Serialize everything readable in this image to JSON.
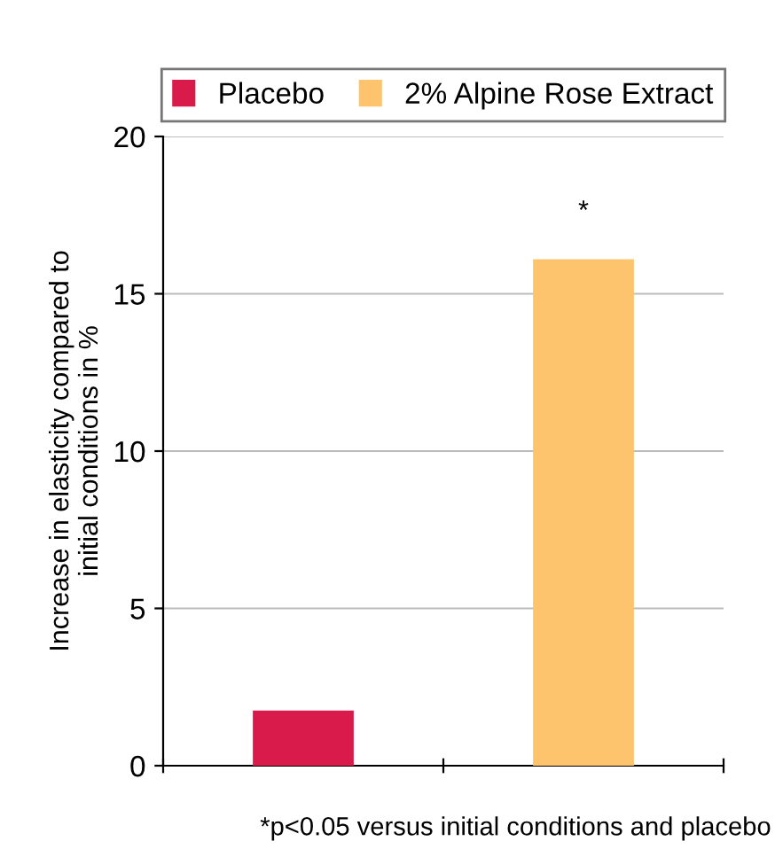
{
  "chart_data": {
    "type": "bar",
    "ylabel": "Increase in elasticity compared to\ninitial conditions in %",
    "categories": [
      null,
      null
    ],
    "series": [
      {
        "name": "Placebo",
        "color": "#d81b4b",
        "values": [
          1.75,
          null
        ]
      },
      {
        "name": "2% Alpine Rose Extract",
        "color": "#fdc46d",
        "values": [
          null,
          16.1
        ]
      }
    ],
    "ylim": [
      0,
      20
    ],
    "yticks": [
      0,
      5,
      10,
      15,
      20
    ],
    "grid": "y",
    "legend": "top",
    "annotations": [
      {
        "text": "*",
        "y": 16.1
      },
      "*p<0.05 versus initial conditions and placebo"
    ]
  }
}
